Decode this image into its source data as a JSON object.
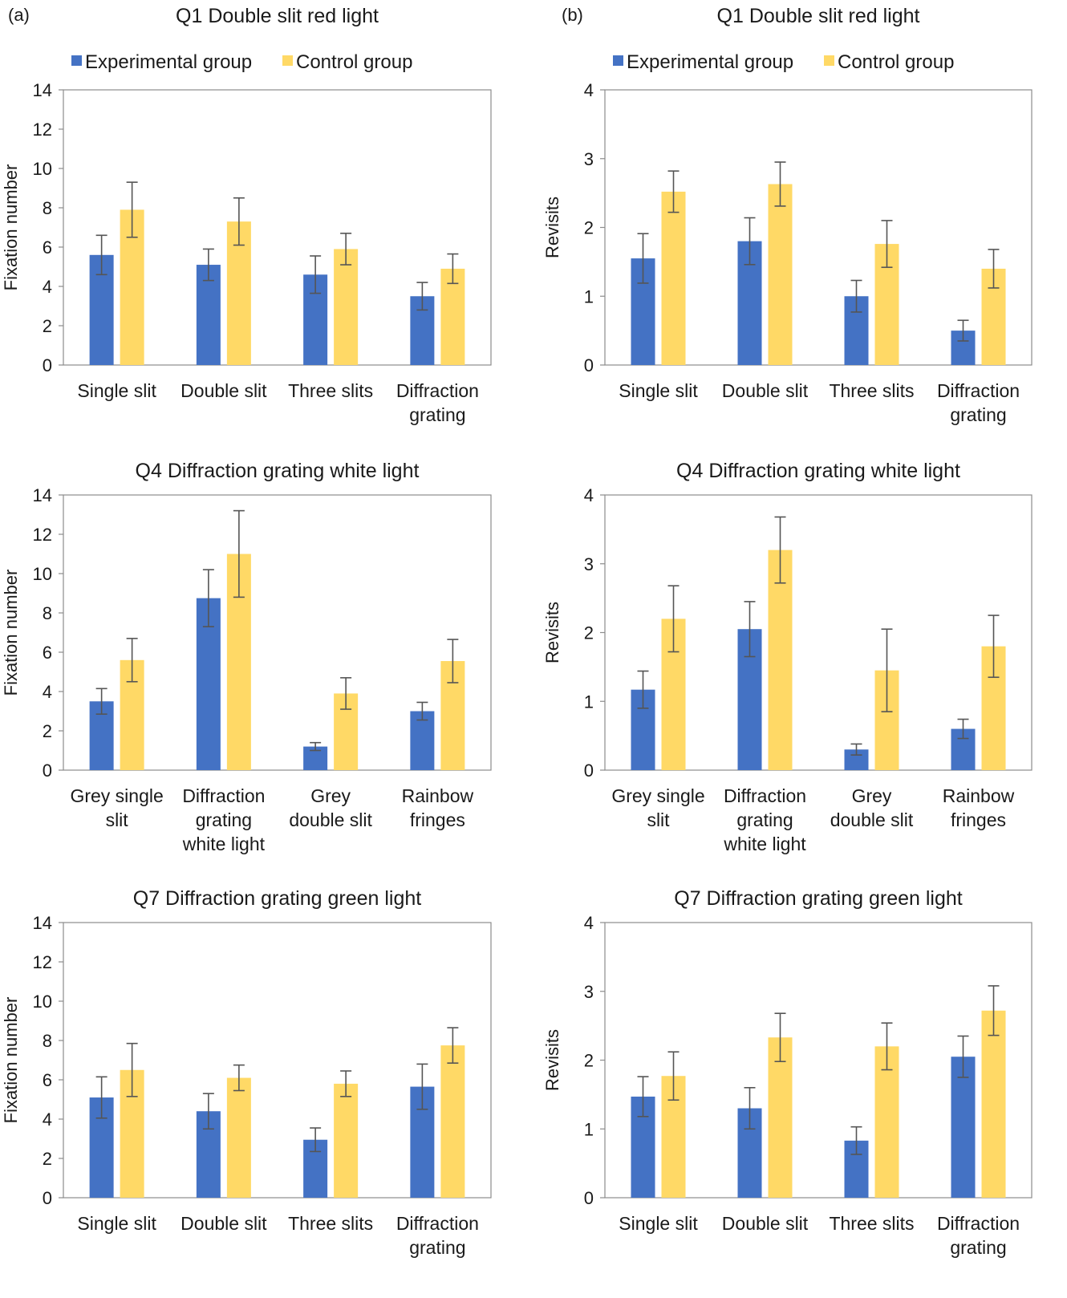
{
  "panel_labels": [
    "(a)",
    "(b)"
  ],
  "legend": {
    "series": [
      "Experimental group",
      "Control group"
    ],
    "colors": [
      "#4472C4",
      "#FFD966"
    ]
  },
  "chart_data": [
    {
      "type": "bar",
      "panel": "(a)",
      "title": "Q1 Double slit red light",
      "ylabel": "Fixation number",
      "ylim": [
        0,
        14
      ],
      "yticks": [
        0,
        2,
        4,
        6,
        8,
        10,
        12,
        14
      ],
      "categories": [
        [
          "Single slit"
        ],
        [
          "Double slit"
        ],
        [
          "Three slits"
        ],
        [
          "Diffraction",
          "grating"
        ]
      ],
      "series": [
        {
          "name": "Experimental group",
          "values": [
            5.6,
            5.1,
            4.6,
            3.5
          ],
          "errors": [
            1.0,
            0.8,
            0.95,
            0.7
          ]
        },
        {
          "name": "Control group",
          "values": [
            7.9,
            7.3,
            5.9,
            4.9
          ],
          "errors": [
            1.4,
            1.2,
            0.8,
            0.75
          ]
        }
      ],
      "legend": "top",
      "grid": false
    },
    {
      "type": "bar",
      "panel": "(b)",
      "title": "Q1 Double slit red light",
      "ylabel": "Revisits",
      "ylim": [
        0,
        4
      ],
      "yticks": [
        0,
        1,
        2,
        3,
        4
      ],
      "categories": [
        [
          "Single slit"
        ],
        [
          "Double slit"
        ],
        [
          "Three slits"
        ],
        [
          "Diffraction",
          "grating"
        ]
      ],
      "series": [
        {
          "name": "Experimental group",
          "values": [
            1.55,
            1.8,
            1.0,
            0.5
          ],
          "errors": [
            0.36,
            0.34,
            0.23,
            0.15
          ]
        },
        {
          "name": "Control group",
          "values": [
            2.52,
            2.63,
            1.76,
            1.4
          ],
          "errors": [
            0.3,
            0.32,
            0.34,
            0.28
          ]
        }
      ],
      "legend": "top",
      "grid": false
    },
    {
      "type": "bar",
      "panel": "(a)",
      "title": "Q4 Diffraction grating white light",
      "ylabel": "Fixation number",
      "ylim": [
        0,
        14
      ],
      "yticks": [
        0,
        2,
        4,
        6,
        8,
        10,
        12,
        14
      ],
      "categories": [
        [
          "Grey single",
          "slit"
        ],
        [
          "Diffraction",
          "grating",
          "white light"
        ],
        [
          "Grey",
          "double slit"
        ],
        [
          "Rainbow",
          "fringes"
        ]
      ],
      "series": [
        {
          "name": "Experimental group",
          "values": [
            3.5,
            8.75,
            1.2,
            3.0
          ],
          "errors": [
            0.65,
            1.45,
            0.2,
            0.45
          ]
        },
        {
          "name": "Control group",
          "values": [
            5.6,
            11.0,
            3.9,
            5.55
          ],
          "errors": [
            1.1,
            2.2,
            0.8,
            1.1
          ]
        }
      ],
      "legend": "none",
      "grid": false
    },
    {
      "type": "bar",
      "panel": "(b)",
      "title": "Q4 Diffraction grating white light",
      "ylabel": "Revisits",
      "ylim": [
        0,
        4
      ],
      "yticks": [
        0,
        1,
        2,
        3,
        4
      ],
      "categories": [
        [
          "Grey single",
          "slit"
        ],
        [
          "Diffraction",
          "grating",
          "white light"
        ],
        [
          "Grey",
          "double slit"
        ],
        [
          "Rainbow",
          "fringes"
        ]
      ],
      "series": [
        {
          "name": "Experimental group",
          "values": [
            1.17,
            2.05,
            0.3,
            0.6
          ],
          "errors": [
            0.27,
            0.4,
            0.08,
            0.14
          ]
        },
        {
          "name": "Control group",
          "values": [
            2.2,
            3.2,
            1.45,
            1.8
          ],
          "errors": [
            0.48,
            0.48,
            0.6,
            0.45
          ]
        }
      ],
      "legend": "none",
      "grid": false
    },
    {
      "type": "bar",
      "panel": "(a)",
      "title": "Q7 Diffraction grating green light",
      "ylabel": "Fixation number",
      "ylim": [
        0,
        14
      ],
      "yticks": [
        0,
        2,
        4,
        6,
        8,
        10,
        12,
        14
      ],
      "categories": [
        [
          "Single slit"
        ],
        [
          "Double slit"
        ],
        [
          "Three slits"
        ],
        [
          "Diffraction",
          "grating"
        ]
      ],
      "series": [
        {
          "name": "Experimental group",
          "values": [
            5.1,
            4.4,
            2.95,
            5.65
          ],
          "errors": [
            1.05,
            0.9,
            0.6,
            1.15
          ]
        },
        {
          "name": "Control group",
          "values": [
            6.5,
            6.1,
            5.8,
            7.75
          ],
          "errors": [
            1.35,
            0.65,
            0.65,
            0.9
          ]
        }
      ],
      "legend": "none",
      "grid": false
    },
    {
      "type": "bar",
      "panel": "(b)",
      "title": "Q7 Diffraction grating green light",
      "ylabel": "Revisits",
      "ylim": [
        0,
        4
      ],
      "yticks": [
        0,
        1,
        2,
        3,
        4
      ],
      "categories": [
        [
          "Single slit"
        ],
        [
          "Double slit"
        ],
        [
          "Three slits"
        ],
        [
          "Diffraction",
          "grating"
        ]
      ],
      "series": [
        {
          "name": "Experimental group",
          "values": [
            1.47,
            1.3,
            0.83,
            2.05
          ],
          "errors": [
            0.29,
            0.3,
            0.2,
            0.3
          ]
        },
        {
          "name": "Control group",
          "values": [
            1.77,
            2.33,
            2.2,
            2.72
          ],
          "errors": [
            0.35,
            0.35,
            0.34,
            0.36
          ]
        }
      ],
      "legend": "none",
      "grid": false
    }
  ]
}
